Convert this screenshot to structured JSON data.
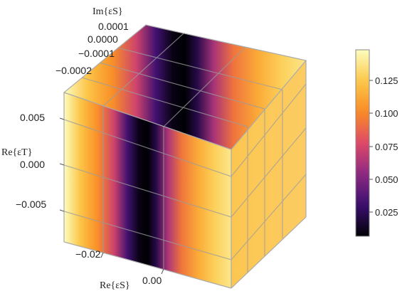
{
  "chart_data": {
    "type": "density3d",
    "axes": {
      "x": {
        "label": "Re{εS}",
        "tick_labels": [
          "−0.02",
          "0.00"
        ],
        "range": [
          -0.03,
          0.012
        ]
      },
      "y": {
        "label": "Im{εS}",
        "tick_labels": [
          "0.0001",
          "0.0000",
          "−0.0001",
          "−0.0002"
        ],
        "range": [
          -0.00025,
          0.00012
        ]
      },
      "z": {
        "label": "Re{εT}",
        "tick_labels": [
          "0.005",
          "0.000",
          "−0.005"
        ],
        "range": [
          -0.008,
          0.008
        ]
      }
    },
    "colorbar": {
      "tick_labels": [
        "0.125",
        "0.100",
        "0.075",
        "0.050",
        "0.025"
      ],
      "range": [
        0.005,
        0.145
      ],
      "colors": [
        "#000004",
        "#3b0f70",
        "#8c2981",
        "#de4968",
        "#f98b25",
        "#fcc849",
        "#fcfdbf"
      ]
    },
    "value_profile": {
      "description_x_positions_normalized": [
        0.0,
        0.1,
        0.2,
        0.3,
        0.38,
        0.45,
        0.5,
        0.55,
        0.62,
        0.7,
        0.8,
        0.9,
        1.0
      ],
      "values": [
        0.145,
        0.12,
        0.1,
        0.07,
        0.03,
        0.008,
        0.005,
        0.02,
        0.06,
        0.09,
        0.11,
        0.125,
        0.135
      ]
    },
    "grid": true
  }
}
